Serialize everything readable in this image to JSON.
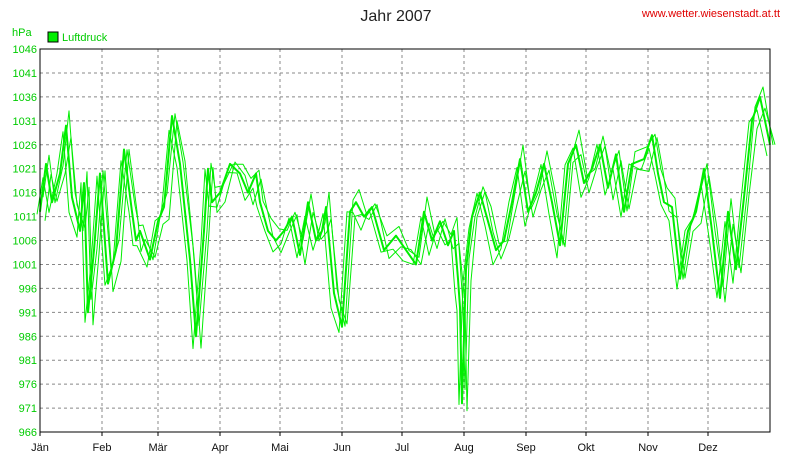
{
  "chart_data": {
    "type": "line",
    "title": "Jahr 2007",
    "source_label": "www.wetter.wiesenstadt.at.tt",
    "ylabel": "hPa",
    "ylim": [
      966,
      1046
    ],
    "yticks": [
      "1046",
      "1041",
      "1036",
      "1031",
      "1026",
      "1021",
      "1016",
      "1011",
      "1006",
      "1001",
      "996",
      "991",
      "986",
      "981",
      "976",
      "971",
      "966"
    ],
    "xlim": [
      0,
      365
    ],
    "categories": [
      "Jän",
      "Feb",
      "Mär",
      "Apr",
      "Mai",
      "Jun",
      "Jul",
      "Aug",
      "Sep",
      "Okt",
      "Nov",
      "Dez"
    ],
    "month_starts": [
      0,
      31,
      59,
      90,
      120,
      151,
      181,
      212,
      243,
      273,
      304,
      334
    ],
    "grid": true,
    "legend_position": "top-left",
    "colors": {
      "series": "#00ee00",
      "text_accent": "#00cc00",
      "site": "#e00000",
      "grid": "#888888",
      "axis": "#000000"
    },
    "series": [
      {
        "name": "Luftdruck",
        "x": [
          0,
          3,
          6,
          10,
          13,
          16,
          20,
          22,
          24,
          27,
          30,
          34,
          38,
          42,
          46,
          48,
          50,
          55,
          59,
          62,
          66,
          70,
          75,
          78,
          82,
          84,
          86,
          90,
          95,
          100,
          104,
          108,
          110,
          114,
          118,
          122,
          126,
          130,
          134,
          138,
          141,
          143,
          147,
          151,
          155,
          158,
          162,
          166,
          172,
          178,
          183,
          188,
          192,
          196,
          200,
          204,
          207,
          209,
          210,
          211,
          213,
          216,
          220,
          224,
          228,
          232,
          236,
          240,
          244,
          248,
          252,
          256,
          260,
          264,
          268,
          272,
          276,
          280,
          284,
          288,
          292,
          296,
          302,
          306,
          309,
          312,
          316,
          320,
          324,
          328,
          332,
          336,
          340,
          344,
          348,
          352,
          356,
          360,
          365
        ],
        "values": [
          1012,
          1022,
          1014,
          1020,
          1030,
          1015,
          1008,
          1018,
          991,
          1004,
          1020,
          997,
          1004,
          1025,
          1012,
          1006,
          1008,
          1002,
          1010,
          1013,
          1032,
          1022,
          1002,
          986,
          1008,
          1021,
          1014,
          1016,
          1022,
          1020,
          1016,
          1020,
          1014,
          1008,
          1006,
          1008,
          1011,
          1003,
          1014,
          1006,
          1008,
          1013,
          995,
          988,
          1012,
          1014,
          1011,
          1013,
          1004,
          1007,
          1004,
          1001,
          1012,
          1006,
          1010,
          1005,
          1008,
          998,
          992,
          972,
          1000,
          1011,
          1016,
          1010,
          1004,
          1006,
          1014,
          1023,
          1012,
          1016,
          1022,
          1014,
          1005,
          1022,
          1026,
          1018,
          1021,
          1026,
          1017,
          1024,
          1012,
          1022,
          1023,
          1028,
          1020,
          1014,
          1013,
          998,
          1008,
          1012,
          1021,
          1008,
          994,
          1012,
          1000,
          1015,
          1031,
          1036,
          1026
        ]
      }
    ]
  }
}
